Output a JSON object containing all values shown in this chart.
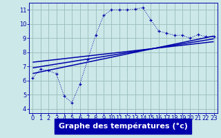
{
  "xlabel": "Graphe des températures (°c)",
  "background_color": "#cce8e8",
  "plot_bg_color": "#cce8e8",
  "line_color": "#0000aa",
  "grid_color": "#99bbbb",
  "xlabel_bg_color": "#0000aa",
  "xlabel_text_color": "#ffffff",
  "xlim": [
    -0.5,
    23.5
  ],
  "ylim": [
    3.7,
    11.5
  ],
  "xticks": [
    0,
    1,
    2,
    3,
    4,
    5,
    6,
    7,
    8,
    9,
    10,
    11,
    12,
    13,
    14,
    15,
    16,
    17,
    18,
    19,
    20,
    21,
    22,
    23
  ],
  "yticks": [
    4,
    5,
    6,
    7,
    8,
    9,
    10,
    11
  ],
  "main_curve_x": [
    0,
    1,
    2,
    3,
    4,
    5,
    6,
    7,
    8,
    9,
    10,
    11,
    12,
    13,
    14,
    15,
    16,
    17,
    18,
    19,
    20,
    21,
    22,
    23
  ],
  "main_curve_y": [
    6.2,
    6.8,
    6.7,
    6.5,
    4.9,
    4.45,
    5.75,
    7.5,
    9.2,
    10.6,
    11.0,
    11.0,
    11.0,
    11.05,
    11.15,
    10.3,
    9.5,
    9.35,
    9.2,
    9.2,
    9.0,
    9.25,
    9.1,
    9.1
  ],
  "reg_line1_x": [
    0,
    23
  ],
  "reg_line1_y": [
    6.5,
    9.15
  ],
  "reg_line2_x": [
    0,
    23
  ],
  "reg_line2_y": [
    6.9,
    8.95
  ],
  "reg_line3_x": [
    0,
    23
  ],
  "reg_line3_y": [
    7.3,
    8.75
  ],
  "xlabel_fontsize": 8,
  "tick_fontsize": 6
}
